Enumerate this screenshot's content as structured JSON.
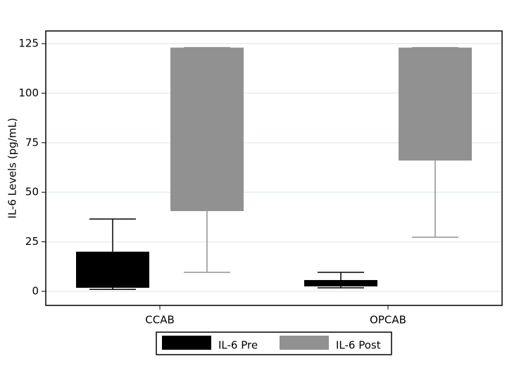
{
  "chart_data": {
    "type": "box",
    "y_label": "IL-6 Levels (pg/mL)",
    "categories": [
      "CCAB",
      "OPCAB"
    ],
    "series": [
      {
        "name": "IL-6 Pre",
        "color": "#000000",
        "low": [
          1,
          1.8
        ],
        "q1": [
          1.8,
          2.5
        ],
        "q3": [
          20,
          5.7
        ],
        "high": [
          36.5,
          9.6
        ]
      },
      {
        "name": "IL-6 Post",
        "color": "#919191",
        "low": [
          9.6,
          27.3
        ],
        "q1": [
          40.5,
          66
        ],
        "q3": [
          123,
          123
        ],
        "high": [
          123,
          123
        ]
      }
    ],
    "ylim": [
      -7.1,
      131.4
    ],
    "yticks": [
      0,
      25,
      50,
      75,
      100,
      125
    ],
    "grid": true
  }
}
